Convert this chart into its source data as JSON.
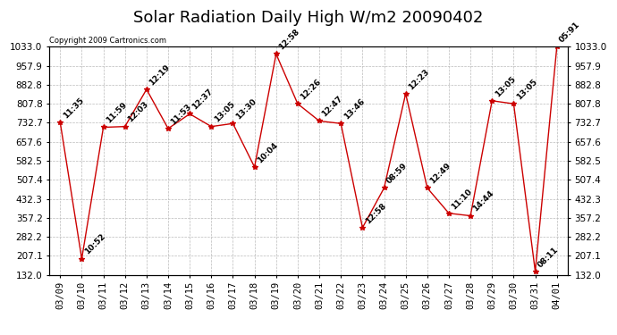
{
  "title": "Solar Radiation Daily High W/m2 20090402",
  "copyright": "Copyright 2009 Cartronics.com",
  "dates": [
    "03/09",
    "03/10",
    "03/11",
    "03/12",
    "03/13",
    "03/14",
    "03/15",
    "03/16",
    "03/17",
    "03/18",
    "03/19",
    "03/20",
    "03/21",
    "03/22",
    "03/23",
    "03/24",
    "03/25",
    "03/26",
    "03/27",
    "03/28",
    "03/29",
    "03/30",
    "03/31",
    "04/01"
  ],
  "values": [
    735,
    195,
    715,
    718,
    865,
    710,
    768,
    718,
    730,
    558,
    1005,
    808,
    740,
    730,
    318,
    475,
    848,
    475,
    375,
    365,
    820,
    808,
    145,
    1033
  ],
  "labels": [
    "11:35",
    "10:52",
    "11:59",
    "12:03",
    "12:19",
    "11:53",
    "12:37",
    "13:05",
    "13:30",
    "10:04",
    "12:58",
    "12:26",
    "12:47",
    "13:46",
    "12:58",
    "08:59",
    "12:23",
    "12:49",
    "11:10",
    "14:44",
    "13:05",
    "13:05",
    "08:11",
    "05:91"
  ],
  "ylim_min": 132.0,
  "ylim_max": 1033.0,
  "yticks": [
    132.0,
    207.1,
    282.2,
    357.2,
    432.3,
    507.4,
    582.5,
    657.6,
    732.7,
    807.8,
    882.8,
    957.9,
    1033.0
  ],
  "ytick_labels": [
    "132.0",
    "207.1",
    "282.2",
    "357.2",
    "432.3",
    "507.4",
    "582.5",
    "657.6",
    "732.7",
    "807.8",
    "882.8",
    "957.9",
    "1033.0"
  ],
  "line_color": "#cc0000",
  "marker_color": "#cc0000",
  "bg_color": "#ffffff",
  "grid_color": "#bbbbbb",
  "title_fontsize": 13,
  "label_fontsize": 6.5,
  "tick_fontsize": 7.5
}
